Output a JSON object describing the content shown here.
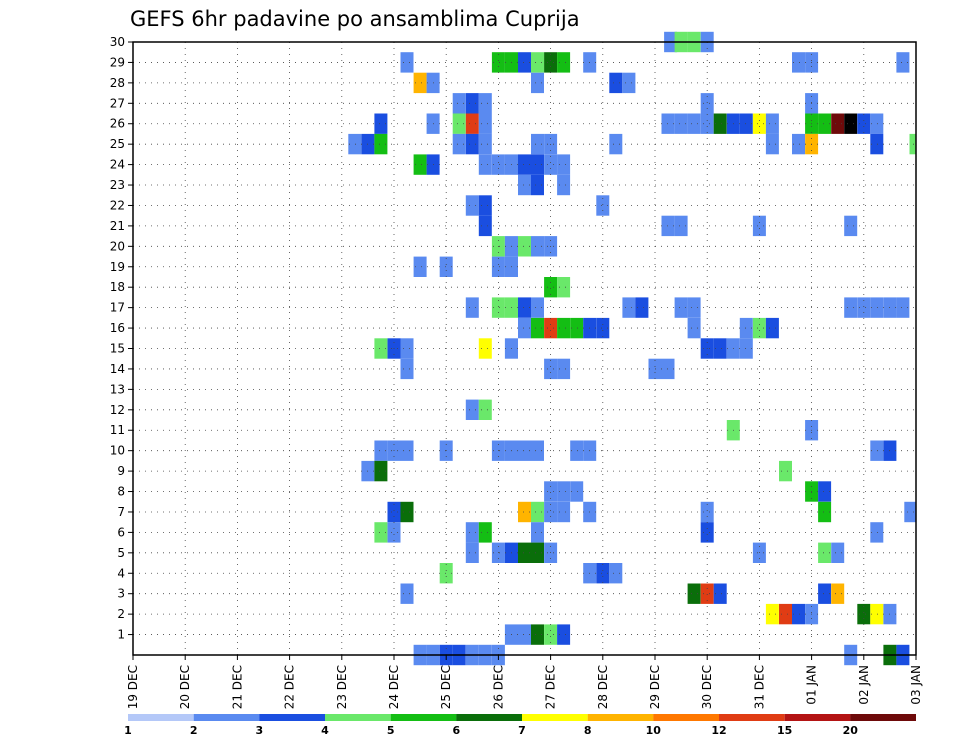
{
  "chart_data": {
    "type": "heatmap",
    "title": "GEFS 6hr padavine po ansamblima Cuprija",
    "xlabel": "",
    "ylabel": "",
    "x_ticks": [
      "19 DEC",
      "20 DEC",
      "21 DEC",
      "22 DEC",
      "23 DEC",
      "24 DEC",
      "25 DEC",
      "26 DEC",
      "27 DEC",
      "28 DEC",
      "29 DEC",
      "30 DEC",
      "31 DEC",
      "01 JAN",
      "02 JAN",
      "03 JAN"
    ],
    "x_unit": "days since 19 DEC 00Z",
    "xlim": [
      0,
      15
    ],
    "y_ticks": [
      1,
      2,
      3,
      4,
      5,
      6,
      7,
      8,
      9,
      10,
      11,
      12,
      13,
      14,
      15,
      16,
      17,
      18,
      19,
      20,
      21,
      22,
      23,
      24,
      25,
      26,
      27,
      28,
      29,
      30
    ],
    "ylim": [
      0,
      30
    ],
    "grid": true,
    "colorbar": {
      "levels": [
        1,
        2,
        3,
        4,
        5,
        6,
        7,
        8,
        10,
        12,
        15,
        20
      ],
      "colors": [
        "#b4c8f8",
        "#5a8af0",
        "#1a4ee0",
        "#6ae86a",
        "#14be14",
        "#0a6e0a",
        "#ffff00",
        "#ffb400",
        "#ff7800",
        "#e03c14",
        "#b41414",
        "#6e0a0a"
      ]
    },
    "cells": [
      [
        10.3,
        30,
        1
      ],
      [
        10.5,
        30,
        3
      ],
      [
        10.75,
        30,
        3
      ],
      [
        11.0,
        30,
        1
      ],
      [
        5.25,
        29,
        1
      ],
      [
        7.0,
        29,
        4
      ],
      [
        7.25,
        29,
        4
      ],
      [
        7.5,
        29,
        2
      ],
      [
        7.75,
        29,
        3
      ],
      [
        8.0,
        29,
        5
      ],
      [
        8.25,
        29,
        4
      ],
      [
        8.75,
        29,
        1
      ],
      [
        12.75,
        29,
        1
      ],
      [
        13.0,
        29,
        1
      ],
      [
        14.75,
        29,
        1
      ],
      [
        5.5,
        28,
        7
      ],
      [
        5.75,
        28,
        1
      ],
      [
        7.75,
        28,
        1
      ],
      [
        9.25,
        28,
        2
      ],
      [
        9.5,
        28,
        1
      ],
      [
        6.25,
        27,
        1
      ],
      [
        6.5,
        27,
        2
      ],
      [
        6.75,
        27,
        1
      ],
      [
        11.0,
        27,
        1
      ],
      [
        13.0,
        27,
        1
      ],
      [
        4.75,
        26,
        2
      ],
      [
        5.75,
        26,
        1
      ],
      [
        6.25,
        26,
        3
      ],
      [
        6.5,
        26,
        9
      ],
      [
        6.75,
        26,
        1
      ],
      [
        10.25,
        26,
        1
      ],
      [
        10.5,
        26,
        1
      ],
      [
        10.75,
        26,
        1
      ],
      [
        11.0,
        26,
        1
      ],
      [
        11.25,
        26,
        5
      ],
      [
        11.5,
        26,
        2
      ],
      [
        11.75,
        26,
        2
      ],
      [
        12.0,
        26,
        6
      ],
      [
        12.25,
        26,
        1
      ],
      [
        13.0,
        26,
        4
      ],
      [
        13.25,
        26,
        4
      ],
      [
        13.5,
        26,
        11
      ],
      [
        13.75,
        26,
        12
      ],
      [
        14.0,
        26,
        2
      ],
      [
        14.25,
        26,
        1
      ],
      [
        4.25,
        25,
        1
      ],
      [
        4.5,
        25,
        2
      ],
      [
        4.75,
        25,
        4
      ],
      [
        6.25,
        25,
        1
      ],
      [
        6.5,
        25,
        2
      ],
      [
        6.75,
        25,
        1
      ],
      [
        7.75,
        25,
        1
      ],
      [
        8.0,
        25,
        1
      ],
      [
        9.25,
        25,
        1
      ],
      [
        12.25,
        25,
        1
      ],
      [
        12.75,
        25,
        1
      ],
      [
        13.0,
        25,
        7
      ],
      [
        14.25,
        25,
        2
      ],
      [
        15.0,
        25,
        3
      ],
      [
        5.5,
        24,
        4
      ],
      [
        5.75,
        24,
        2
      ],
      [
        6.75,
        24,
        1
      ],
      [
        7.0,
        24,
        1
      ],
      [
        7.25,
        24,
        1
      ],
      [
        7.5,
        24,
        2
      ],
      [
        7.75,
        24,
        2
      ],
      [
        8.0,
        24,
        1
      ],
      [
        8.25,
        24,
        1
      ],
      [
        7.5,
        23,
        1
      ],
      [
        7.75,
        23,
        2
      ],
      [
        8.25,
        23,
        1
      ],
      [
        6.5,
        22,
        1
      ],
      [
        6.75,
        22,
        2
      ],
      [
        9.0,
        22,
        1
      ],
      [
        6.75,
        21,
        2
      ],
      [
        10.25,
        21,
        1
      ],
      [
        10.5,
        21,
        1
      ],
      [
        12.0,
        21,
        1
      ],
      [
        13.75,
        21,
        1
      ],
      [
        7.0,
        20,
        3
      ],
      [
        7.25,
        20,
        1
      ],
      [
        7.5,
        20,
        3
      ],
      [
        7.75,
        20,
        1
      ],
      [
        8.0,
        20,
        1
      ],
      [
        5.5,
        19,
        1
      ],
      [
        6.0,
        19,
        1
      ],
      [
        7.0,
        19,
        1
      ],
      [
        7.25,
        19,
        1
      ],
      [
        8.0,
        18,
        4
      ],
      [
        8.25,
        18,
        3
      ],
      [
        6.5,
        17,
        1
      ],
      [
        7.0,
        17,
        3
      ],
      [
        7.25,
        17,
        3
      ],
      [
        7.5,
        17,
        2
      ],
      [
        7.75,
        17,
        1
      ],
      [
        9.5,
        17,
        1
      ],
      [
        9.75,
        17,
        2
      ],
      [
        10.5,
        17,
        1
      ],
      [
        10.75,
        17,
        1
      ],
      [
        13.75,
        17,
        1
      ],
      [
        14.0,
        17,
        1
      ],
      [
        14.25,
        17,
        1
      ],
      [
        14.5,
        17,
        1
      ],
      [
        14.75,
        17,
        1
      ],
      [
        7.5,
        16,
        1
      ],
      [
        7.75,
        16,
        4
      ],
      [
        8.0,
        16,
        9
      ],
      [
        8.25,
        16,
        4
      ],
      [
        8.5,
        16,
        4
      ],
      [
        8.75,
        16,
        2
      ],
      [
        9.0,
        16,
        2
      ],
      [
        10.75,
        16,
        1
      ],
      [
        11.75,
        16,
        1
      ],
      [
        12.0,
        16,
        3
      ],
      [
        12.25,
        16,
        2
      ],
      [
        4.75,
        15,
        3
      ],
      [
        5.0,
        15,
        2
      ],
      [
        5.25,
        15,
        1
      ],
      [
        6.75,
        15,
        6
      ],
      [
        7.25,
        15,
        1
      ],
      [
        11.0,
        15,
        2
      ],
      [
        11.25,
        15,
        2
      ],
      [
        11.5,
        15,
        1
      ],
      [
        11.75,
        15,
        1
      ],
      [
        5.25,
        14,
        1
      ],
      [
        8.0,
        14,
        1
      ],
      [
        8.25,
        14,
        1
      ],
      [
        10.0,
        14,
        1
      ],
      [
        10.25,
        14,
        1
      ],
      [
        6.5,
        12,
        1
      ],
      [
        6.75,
        12,
        3
      ],
      [
        11.5,
        11,
        3
      ],
      [
        13.0,
        11,
        1
      ],
      [
        4.75,
        10,
        1
      ],
      [
        5.0,
        10,
        1
      ],
      [
        5.25,
        10,
        1
      ],
      [
        6.0,
        10,
        1
      ],
      [
        7.0,
        10,
        1
      ],
      [
        7.25,
        10,
        1
      ],
      [
        7.5,
        10,
        1
      ],
      [
        7.75,
        10,
        1
      ],
      [
        8.5,
        10,
        1
      ],
      [
        8.75,
        10,
        1
      ],
      [
        14.25,
        10,
        1
      ],
      [
        14.5,
        10,
        2
      ],
      [
        4.5,
        9,
        1
      ],
      [
        4.75,
        9,
        5
      ],
      [
        12.5,
        9,
        3
      ],
      [
        8.0,
        8,
        1
      ],
      [
        8.25,
        8,
        1
      ],
      [
        8.5,
        8,
        1
      ],
      [
        13.0,
        8,
        4
      ],
      [
        13.25,
        8,
        2
      ],
      [
        5.0,
        7,
        2
      ],
      [
        5.25,
        7,
        5
      ],
      [
        7.5,
        7,
        7
      ],
      [
        7.75,
        7,
        3
      ],
      [
        8.0,
        7,
        1
      ],
      [
        8.25,
        7,
        1
      ],
      [
        8.75,
        7,
        1
      ],
      [
        11.0,
        7,
        1
      ],
      [
        13.25,
        7,
        4
      ],
      [
        14.9,
        7,
        1
      ],
      [
        4.75,
        6,
        3
      ],
      [
        5.0,
        6,
        1
      ],
      [
        6.5,
        6,
        1
      ],
      [
        6.75,
        6,
        4
      ],
      [
        7.75,
        6,
        1
      ],
      [
        11.0,
        6,
        2
      ],
      [
        14.25,
        6,
        1
      ],
      [
        6.5,
        5,
        1
      ],
      [
        7.0,
        5,
        1
      ],
      [
        7.25,
        5,
        2
      ],
      [
        7.5,
        5,
        5
      ],
      [
        7.75,
        5,
        5
      ],
      [
        8.0,
        5,
        1
      ],
      [
        12.0,
        5,
        1
      ],
      [
        13.25,
        5,
        3
      ],
      [
        13.5,
        5,
        1
      ],
      [
        6.0,
        4,
        3
      ],
      [
        8.75,
        4,
        1
      ],
      [
        9.0,
        4,
        2
      ],
      [
        9.25,
        4,
        1
      ],
      [
        5.25,
        3,
        1
      ],
      [
        10.75,
        3,
        5
      ],
      [
        11.0,
        3,
        9
      ],
      [
        11.25,
        3,
        2
      ],
      [
        13.25,
        3,
        2
      ],
      [
        13.5,
        3,
        7
      ],
      [
        12.25,
        2,
        6
      ],
      [
        12.5,
        2,
        9
      ],
      [
        12.75,
        2,
        2
      ],
      [
        13.0,
        2,
        1
      ],
      [
        14.0,
        2,
        5
      ],
      [
        14.25,
        2,
        6
      ],
      [
        14.5,
        2,
        1
      ],
      [
        7.25,
        1,
        1
      ],
      [
        7.5,
        1,
        1
      ],
      [
        7.75,
        1,
        5
      ],
      [
        8.0,
        1,
        3
      ],
      [
        8.25,
        1,
        2
      ],
      [
        5.5,
        0,
        1
      ],
      [
        5.75,
        0,
        1
      ],
      [
        6.0,
        0,
        2
      ],
      [
        6.25,
        0,
        2
      ],
      [
        6.5,
        0,
        1
      ],
      [
        6.75,
        0,
        1
      ],
      [
        7.0,
        0,
        1
      ],
      [
        13.75,
        0,
        1
      ],
      [
        14.5,
        0,
        5
      ],
      [
        14.75,
        0,
        2
      ]
    ]
  }
}
